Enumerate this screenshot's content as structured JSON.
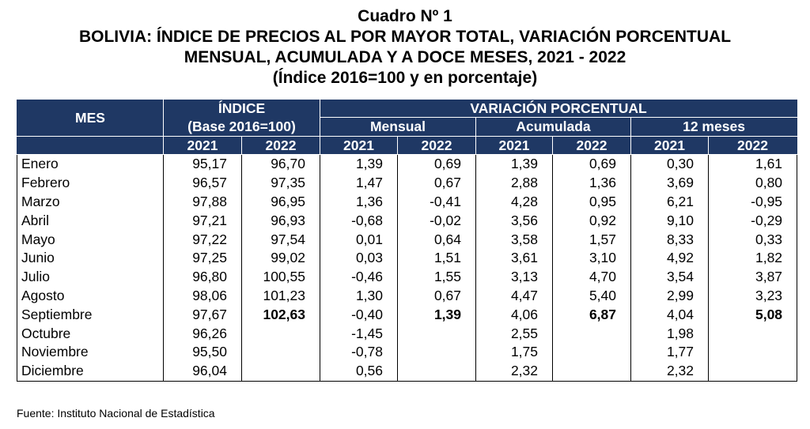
{
  "title": {
    "line1": "Cuadro Nº 1",
    "line2": "BOLIVIA: ÍNDICE DE PRECIOS AL POR MAYOR TOTAL, VARIACIÓN PORCENTUAL",
    "line3": "MENSUAL, ACUMULADA Y A DOCE MESES, 2021 - 2022",
    "line4": "(Índice 2016=100 y en porcentaje)"
  },
  "header": {
    "mes": "MES",
    "indice": "ÍNDICE",
    "indice_base": "(Base 2016=100)",
    "variacion": "VARIACIÓN PORCENTUAL",
    "mensual": "Mensual",
    "acumulada": "Acumulada",
    "doce_meses": "12 meses",
    "years": [
      "2021",
      "2022",
      "2021",
      "2022",
      "2021",
      "2022",
      "2021",
      "2022"
    ]
  },
  "rows": [
    {
      "mes": "Enero",
      "v": [
        "95,17",
        "96,70",
        "1,39",
        "0,69",
        "1,39",
        "0,69",
        "0,30",
        "1,61"
      ]
    },
    {
      "mes": "Febrero",
      "v": [
        "96,57",
        "97,35",
        "1,47",
        "0,67",
        "2,88",
        "1,36",
        "3,69",
        "0,80"
      ]
    },
    {
      "mes": "Marzo",
      "v": [
        "97,88",
        "96,95",
        "1,36",
        "-0,41",
        "4,28",
        "0,95",
        "6,21",
        "-0,95"
      ]
    },
    {
      "mes": "Abril",
      "v": [
        "97,21",
        "96,93",
        "-0,68",
        "-0,02",
        "3,56",
        "0,92",
        "9,10",
        "-0,29"
      ]
    },
    {
      "mes": "Mayo",
      "v": [
        "97,22",
        "97,54",
        "0,01",
        "0,64",
        "3,58",
        "1,57",
        "8,33",
        "0,33"
      ]
    },
    {
      "mes": "Junio",
      "v": [
        "97,25",
        "99,02",
        "0,03",
        "1,51",
        "3,61",
        "3,10",
        "4,92",
        "1,82"
      ]
    },
    {
      "mes": "Julio",
      "v": [
        "96,80",
        "100,55",
        "-0,46",
        "1,55",
        "3,13",
        "4,70",
        "3,54",
        "3,87"
      ]
    },
    {
      "mes": "Agosto",
      "v": [
        "98,06",
        "101,23",
        "1,30",
        "0,67",
        "4,47",
        "5,40",
        "2,99",
        "3,23"
      ]
    },
    {
      "mes": "Septiembre",
      "v": [
        "97,67",
        "102,63",
        "-0,40",
        "1,39",
        "4,06",
        "6,87",
        "4,04",
        "5,08"
      ]
    },
    {
      "mes": "Octubre",
      "v": [
        "96,26",
        "",
        "-1,45",
        "",
        "2,55",
        "",
        "1,98",
        ""
      ]
    },
    {
      "mes": "Noviembre",
      "v": [
        "95,50",
        "",
        "-0,78",
        "",
        "1,75",
        "",
        "1,77",
        ""
      ]
    },
    {
      "mes": "Diciembre",
      "v": [
        "96,04",
        "",
        "0,56",
        "",
        "2,32",
        "",
        "2,32",
        ""
      ]
    }
  ],
  "source": "Fuente: Instituto Nacional de Estadística"
}
